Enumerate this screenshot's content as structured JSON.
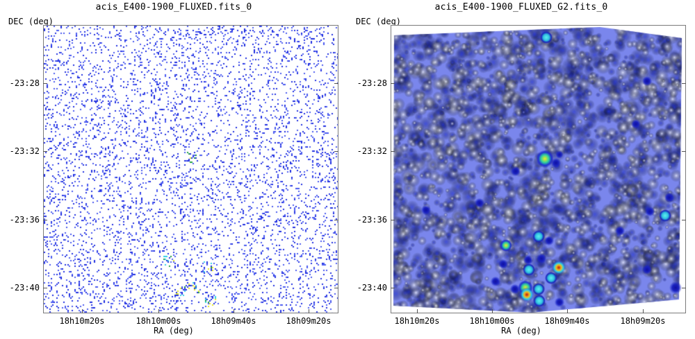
{
  "panels": [
    {
      "title": "acis_E400-1900_FLUXED.fits_0",
      "ylabel": "DEC (deg)",
      "xlabel": "RA (deg)",
      "yticks": [
        "-23:28",
        "-23:32",
        "-23:36",
        "-23:40"
      ],
      "xticks": [
        "18h10m20s",
        "18h10m00s",
        "18h09m40s",
        "18h09m20s"
      ],
      "style": "sparse-pixels"
    },
    {
      "title": "acis_E400-1900_FLUXED_G2.fits_0",
      "ylabel": "DEC (deg)",
      "xlabel": "RA (deg)",
      "yticks": [
        "-23:28",
        "-23:32",
        "-23:36",
        "-23:40"
      ],
      "xticks": [
        "18h10m20s",
        "18h10m00s",
        "18h09m40s",
        "18h09m20s"
      ],
      "style": "smoothed"
    }
  ],
  "colors": {
    "pixel_blue": "#1f2ee0",
    "smooth_blue": "#3c4ee6",
    "bright_cyan": "#30d0e8",
    "bright_yellow": "#e8e820",
    "bright_red": "#d01818"
  }
}
